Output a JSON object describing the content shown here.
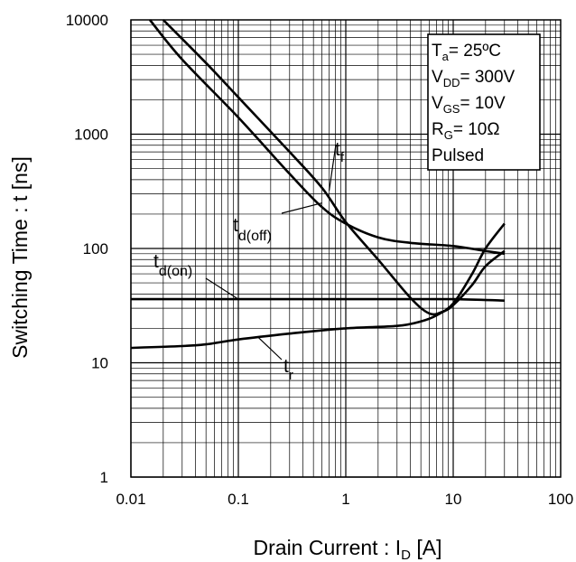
{
  "chart_data": {
    "type": "line",
    "x_scale": "log",
    "y_scale": "log",
    "xlim": [
      0.01,
      100
    ],
    "ylim": [
      1,
      10000
    ],
    "grid": true,
    "xlabel": {
      "main": "Drain Current : I",
      "sub": "D",
      "unit": " [A]"
    },
    "ylabel": "Switching Time : t [ns]",
    "x_ticks": [
      "0.01",
      "0.1",
      "1",
      "10",
      "100"
    ],
    "y_ticks": [
      "1",
      "10",
      "100",
      "1000",
      "10000"
    ],
    "conditions": [
      {
        "main": "T",
        "sub": "a",
        "rest": "= 25ºC"
      },
      {
        "main": "V",
        "sub": "DD",
        "rest": "= 300V"
      },
      {
        "main": "V",
        "sub": "GS",
        "rest": "= 10V"
      },
      {
        "main": "R",
        "sub": "G",
        "rest": "= 10Ω"
      },
      {
        "main": "Pulsed",
        "sub": "",
        "rest": ""
      }
    ],
    "series": [
      {
        "name": "t_d(off)",
        "label": {
          "main": "t",
          "sub": "d(off)"
        },
        "x": [
          0.015,
          0.03,
          0.1,
          0.3,
          0.6,
          1,
          2,
          4,
          10,
          20,
          30
        ],
        "y": [
          10000,
          4500,
          1400,
          450,
          230,
          165,
          125,
          112,
          105,
          95,
          90
        ]
      },
      {
        "name": "t_f",
        "label": {
          "main": "t",
          "sub": "f"
        },
        "x": [
          0.02,
          0.05,
          0.1,
          0.3,
          0.6,
          1,
          2,
          4,
          6,
          8,
          10,
          15,
          20,
          30
        ],
        "y": [
          10000,
          4200,
          2100,
          700,
          340,
          170,
          80,
          37,
          27,
          28,
          32,
          48,
          70,
          95
        ]
      },
      {
        "name": "t_d(on)",
        "label": {
          "main": "t",
          "sub": "d(on)"
        },
        "x": [
          0.01,
          0.03,
          0.1,
          0.3,
          1,
          3,
          10,
          30
        ],
        "y": [
          36,
          36,
          36,
          36,
          36,
          36,
          36,
          35
        ]
      },
      {
        "name": "t_r",
        "label": {
          "main": "t",
          "sub": "r"
        },
        "x": [
          0.01,
          0.03,
          0.05,
          0.1,
          0.3,
          1,
          3,
          5,
          7,
          10,
          15,
          20,
          30
        ],
        "y": [
          13.5,
          14,
          14.5,
          16,
          18,
          20,
          21,
          23,
          26,
          33,
          60,
          100,
          165
        ]
      }
    ]
  }
}
